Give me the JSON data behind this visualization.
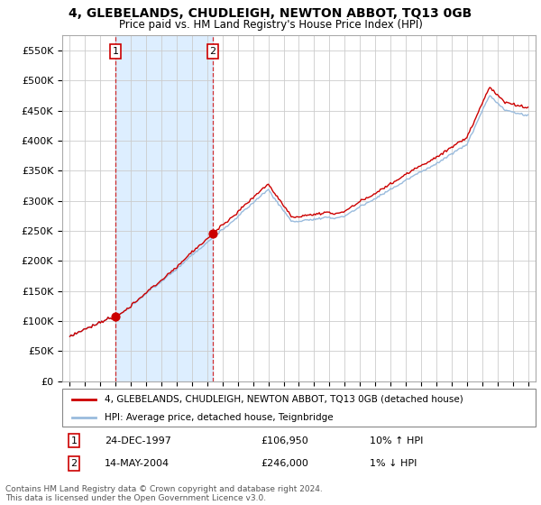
{
  "title": "4, GLEBELANDS, CHUDLEIGH, NEWTON ABBOT, TQ13 0GB",
  "subtitle": "Price paid vs. HM Land Registry's House Price Index (HPI)",
  "ylabel_ticks": [
    "£0",
    "£50K",
    "£100K",
    "£150K",
    "£200K",
    "£250K",
    "£300K",
    "£350K",
    "£400K",
    "£450K",
    "£500K",
    "£550K"
  ],
  "ytick_values": [
    0,
    50000,
    100000,
    150000,
    200000,
    250000,
    300000,
    350000,
    400000,
    450000,
    500000,
    550000
  ],
  "ylim": [
    0,
    575000
  ],
  "xlim_start": 1994.5,
  "xlim_end": 2025.5,
  "sale1_date_x": 1997.98,
  "sale1_price": 106950,
  "sale1_label": "1",
  "sale1_date_str": "24-DEC-1997",
  "sale1_price_str": "£106,950",
  "sale1_hpi_str": "10% ↑ HPI",
  "sale2_date_x": 2004.37,
  "sale2_price": 246000,
  "sale2_label": "2",
  "sale2_date_str": "14-MAY-2004",
  "sale2_price_str": "£246,000",
  "sale2_hpi_str": "1% ↓ HPI",
  "line_color_sale": "#cc0000",
  "line_color_hpi": "#99bbdd",
  "shade_color": "#ddeeff",
  "dot_color": "#cc0000",
  "vline_color": "#cc0000",
  "background_color": "#ffffff",
  "grid_color": "#cccccc",
  "legend_label_sale": "4, GLEBELANDS, CHUDLEIGH, NEWTON ABBOT, TQ13 0GB (detached house)",
  "legend_label_hpi": "HPI: Average price, detached house, Teignbridge",
  "footer": "Contains HM Land Registry data © Crown copyright and database right 2024.\nThis data is licensed under the Open Government Licence v3.0."
}
